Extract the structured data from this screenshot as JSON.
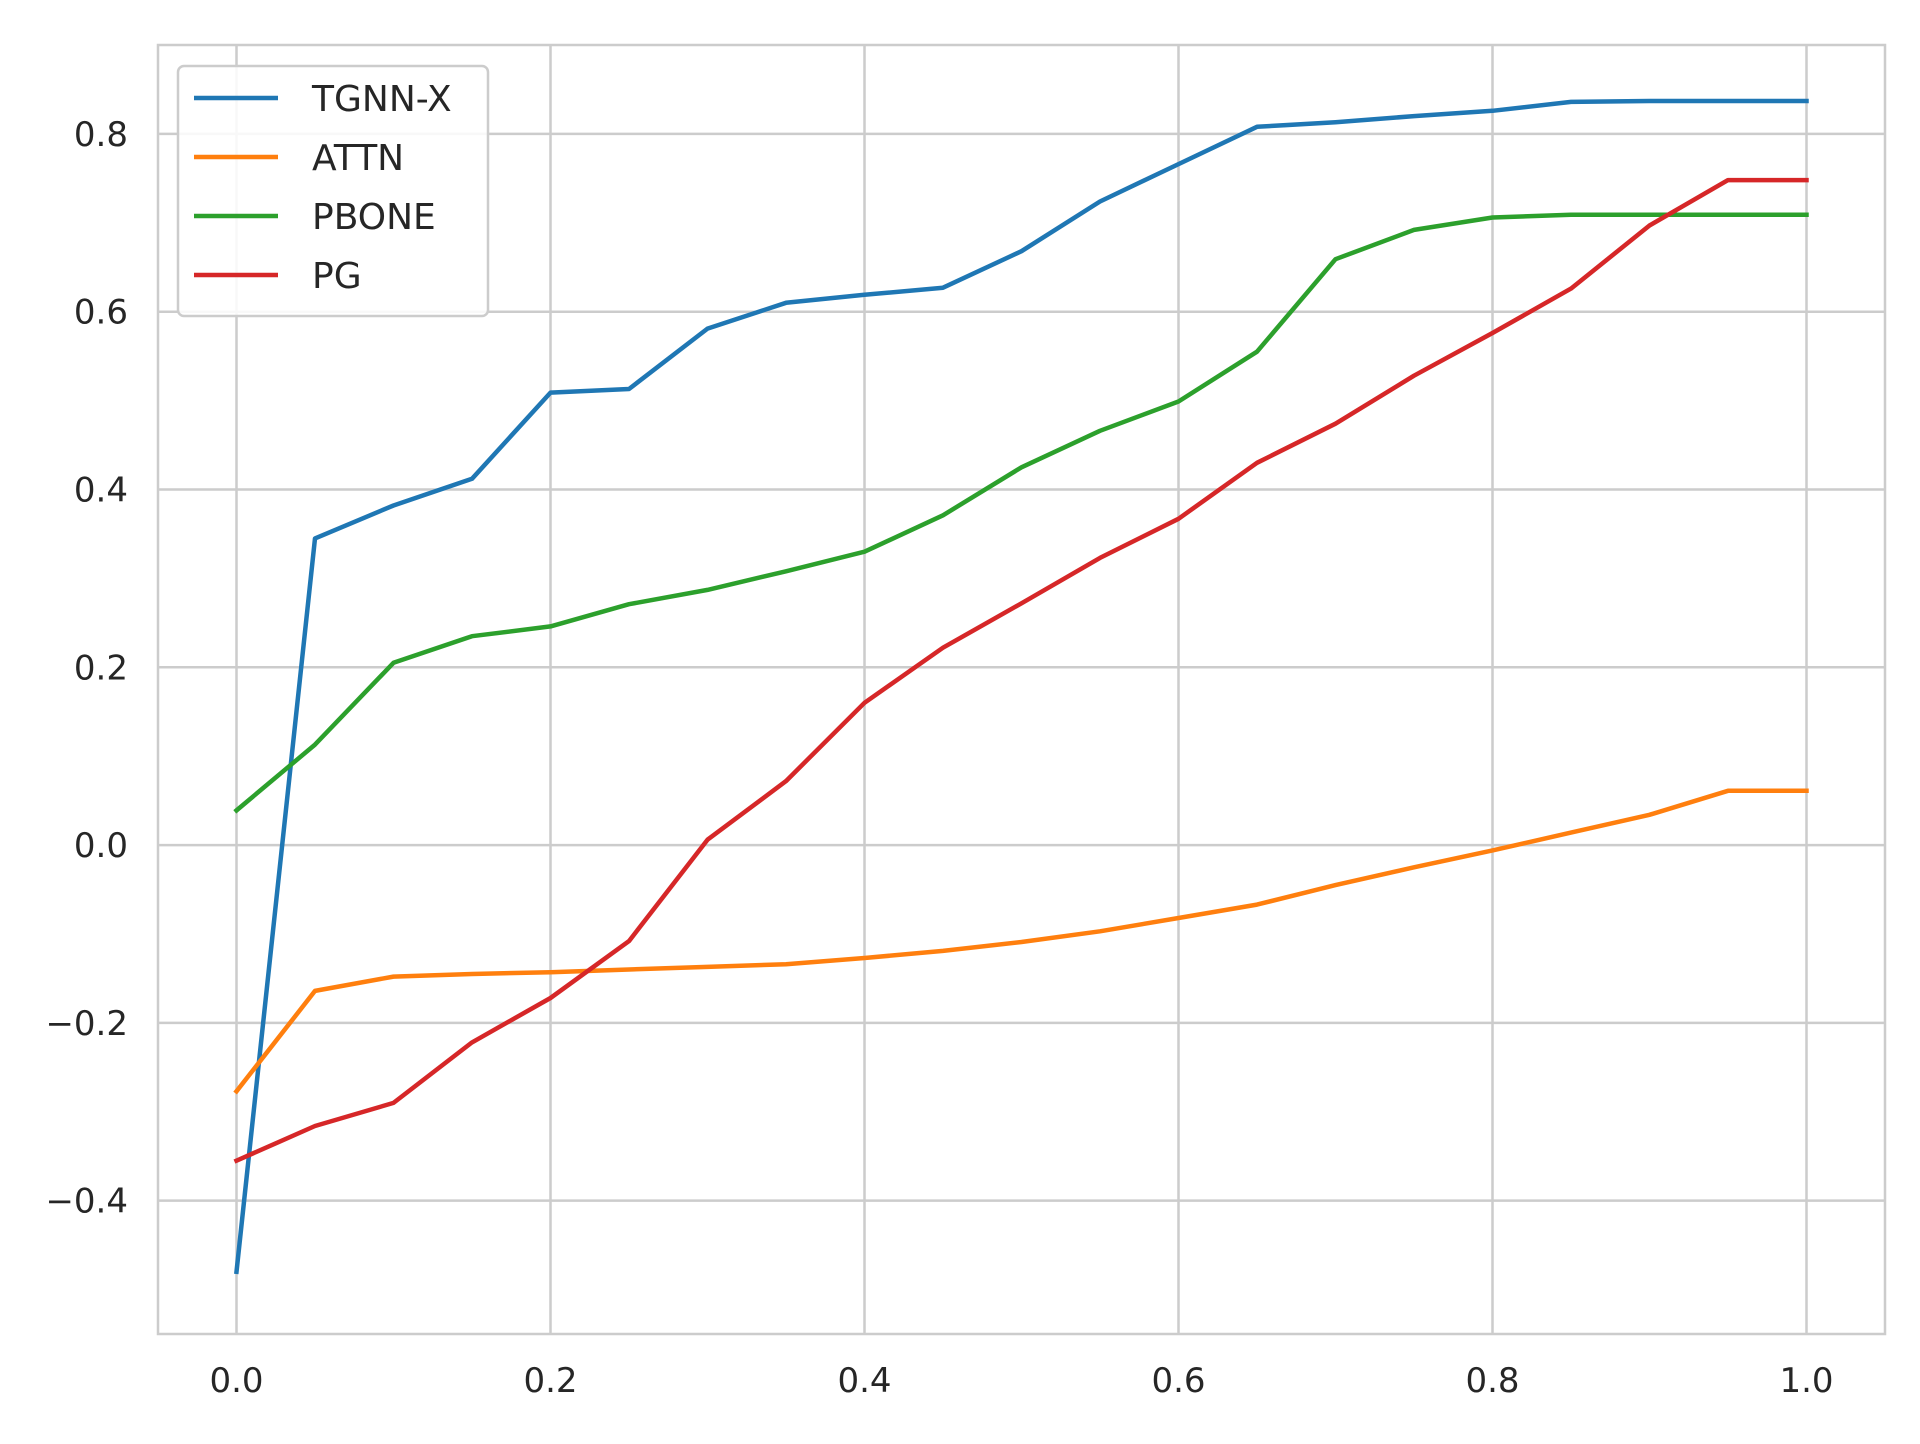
{
  "chart_data": {
    "type": "line",
    "title": "",
    "xlabel": "",
    "ylabel": "",
    "xlim": [
      -0.05,
      1.05
    ],
    "ylim": [
      -0.55,
      0.9
    ],
    "grid": true,
    "legend_position": "top-left",
    "x_ticks": [
      0.0,
      0.2,
      0.4,
      0.6,
      0.8,
      1.0
    ],
    "x_tick_labels": [
      "0.0",
      "0.2",
      "0.4",
      "0.6",
      "0.8",
      "1.0"
    ],
    "y_ticks": [
      -0.4,
      -0.2,
      0.0,
      0.2,
      0.4,
      0.6,
      0.8
    ],
    "y_tick_labels": [
      "−0.4",
      "−0.2",
      "0.0",
      "0.2",
      "0.4",
      "0.6",
      "0.8"
    ],
    "x": [
      0.0,
      0.05,
      0.1,
      0.15,
      0.2,
      0.25,
      0.3,
      0.35,
      0.4,
      0.45,
      0.5,
      0.55,
      0.6,
      0.65,
      0.7,
      0.75,
      0.8,
      0.85,
      0.9,
      0.95,
      1.0
    ],
    "series": [
      {
        "name": "TGNN-X",
        "color": "#1f77b4",
        "values": [
          -0.48,
          0.345,
          0.382,
          0.412,
          0.509,
          0.513,
          0.581,
          0.61,
          0.619,
          0.627,
          0.668,
          0.724,
          0.766,
          0.808,
          0.813,
          0.82,
          0.826,
          0.836,
          0.837,
          0.837,
          0.837
        ]
      },
      {
        "name": "ATTN",
        "color": "#ff7f0e",
        "values": [
          -0.277,
          -0.164,
          -0.148,
          -0.145,
          -0.143,
          -0.14,
          -0.137,
          -0.134,
          -0.127,
          -0.119,
          -0.109,
          -0.097,
          -0.082,
          -0.067,
          -0.045,
          -0.025,
          -0.006,
          0.014,
          0.034,
          0.061,
          0.061
        ]
      },
      {
        "name": "PBONE",
        "color": "#2ca02c",
        "values": [
          0.039,
          0.113,
          0.205,
          0.235,
          0.246,
          0.271,
          0.287,
          0.308,
          0.33,
          0.371,
          0.425,
          0.466,
          0.499,
          0.555,
          0.659,
          0.692,
          0.706,
          0.709,
          0.709,
          0.709,
          0.709
        ]
      },
      {
        "name": "PG",
        "color": "#d62728",
        "values": [
          -0.355,
          -0.316,
          -0.29,
          -0.222,
          -0.172,
          -0.108,
          0.006,
          0.072,
          0.16,
          0.222,
          0.272,
          0.323,
          0.367,
          0.43,
          0.474,
          0.528,
          0.576,
          0.626,
          0.697,
          0.748,
          0.748
        ]
      }
    ]
  }
}
